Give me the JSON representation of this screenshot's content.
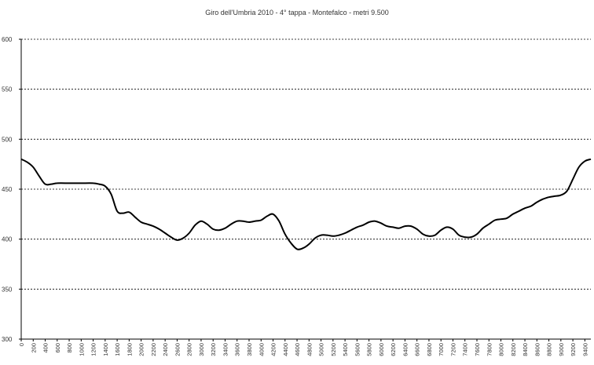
{
  "chart_data": {
    "type": "line",
    "title": "Giro dell'Umbria 2010 - 4° tappa - Montefalco - metri 9.500",
    "xlabel": "",
    "ylabel": "",
    "ylim": [
      300,
      600
    ],
    "xlim": [
      0,
      9500
    ],
    "y_ticks": [
      "300",
      "350",
      "400",
      "450",
      "500",
      "550",
      "600"
    ],
    "x_ticks": [
      "0",
      "200",
      "400",
      "600",
      "800",
      "1000",
      "1200",
      "1400",
      "1600",
      "1800",
      "2000",
      "2200",
      "2400",
      "2600",
      "2800",
      "3000",
      "3200",
      "3400",
      "3600",
      "3800",
      "4000",
      "4200",
      "4400",
      "4600",
      "4800",
      "5000",
      "5200",
      "5400",
      "5600",
      "5800",
      "6000",
      "6200",
      "6400",
      "6600",
      "6800",
      "7000",
      "7200",
      "7400",
      "7600",
      "7800",
      "8000",
      "8200",
      "8400",
      "8600",
      "8800",
      "9000",
      "9200",
      "9400"
    ],
    "grid": "horizontal dashed",
    "line_color": "#000000",
    "x": [
      0,
      100,
      200,
      300,
      400,
      500,
      600,
      800,
      1000,
      1200,
      1300,
      1400,
      1500,
      1600,
      1700,
      1800,
      1900,
      2000,
      2100,
      2200,
      2300,
      2400,
      2500,
      2600,
      2700,
      2800,
      2900,
      3000,
      3100,
      3200,
      3300,
      3400,
      3500,
      3600,
      3700,
      3800,
      3900,
      4000,
      4100,
      4200,
      4300,
      4400,
      4500,
      4600,
      4700,
      4800,
      4900,
      5000,
      5100,
      5200,
      5300,
      5400,
      5500,
      5600,
      5700,
      5800,
      5900,
      6000,
      6100,
      6200,
      6300,
      6400,
      6500,
      6600,
      6700,
      6800,
      6900,
      7000,
      7100,
      7200,
      7300,
      7400,
      7500,
      7600,
      7700,
      7800,
      7900,
      8000,
      8100,
      8200,
      8300,
      8400,
      8500,
      8600,
      8700,
      8800,
      8900,
      9000,
      9100,
      9200,
      9300,
      9400,
      9500
    ],
    "y": [
      480,
      477,
      472,
      463,
      455,
      455,
      456,
      456,
      456,
      456,
      455,
      453,
      445,
      428,
      426,
      427,
      422,
      417,
      415,
      413,
      410,
      406,
      402,
      399,
      401,
      406,
      414,
      418,
      415,
      410,
      409,
      411,
      415,
      418,
      418,
      417,
      418,
      419,
      423,
      425,
      418,
      405,
      396,
      390,
      391,
      395,
      401,
      404,
      404,
      403,
      404,
      406,
      409,
      412,
      414,
      417,
      418,
      416,
      413,
      412,
      411,
      413,
      413,
      410,
      405,
      403,
      404,
      409,
      412,
      410,
      404,
      402,
      402,
      405,
      411,
      415,
      419,
      420,
      421,
      425,
      428,
      431,
      433,
      437,
      440,
      442,
      443,
      444,
      448,
      460,
      472,
      478,
      480
    ]
  }
}
